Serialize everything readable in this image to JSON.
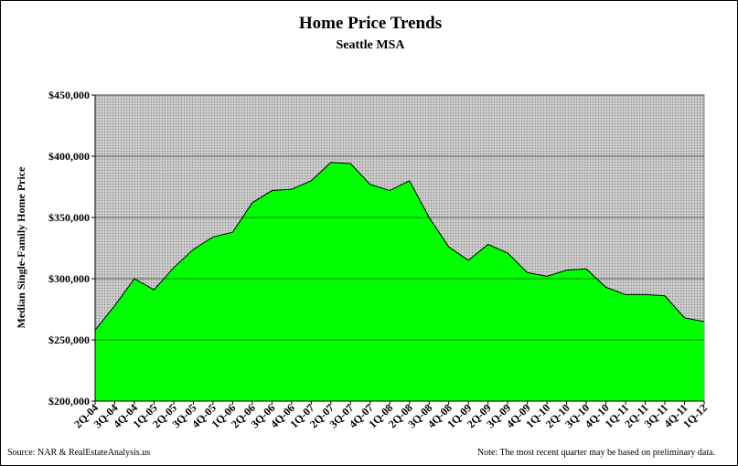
{
  "chart_data": {
    "type": "area",
    "title": "Home Price Trends",
    "subtitle": "Seattle MSA",
    "y_label": "Median Single-Family Home Price",
    "source": "Source: NAR & RealEstateAnalysis.us",
    "note": "Note: The most recent quarter may be based on preliminary data.",
    "categories": [
      "2Q-04",
      "3Q-04",
      "4Q-04",
      "1Q-05",
      "2Q-05",
      "3Q-05",
      "4Q-05",
      "1Q-06",
      "2Q-06",
      "3Q-06",
      "4Q-06",
      "1Q-07",
      "2Q-07",
      "3Q-07",
      "4Q-07",
      "1Q-08",
      "2Q-08",
      "3Q-08",
      "4Q-08",
      "1Q-09",
      "2Q-09",
      "3Q-09",
      "4Q-09",
      "1Q-10",
      "2Q-10",
      "3Q-10",
      "4Q-10",
      "1Q-11",
      "2Q-11",
      "3Q-11",
      "4Q-11",
      "1Q-12"
    ],
    "values": [
      258000,
      278000,
      300000,
      291000,
      309000,
      324000,
      334000,
      338000,
      362000,
      372000,
      373000,
      380000,
      395000,
      394000,
      377000,
      372000,
      380000,
      350000,
      326000,
      315000,
      328000,
      321000,
      305000,
      302000,
      307000,
      308000,
      293000,
      287000,
      287000,
      286000,
      268000,
      265000
    ],
    "color": "#00ff00",
    "ylim": [
      200000,
      450000
    ],
    "yticks": [
      {
        "value": 200000,
        "label": "$200,000"
      },
      {
        "value": 250000,
        "label": "$250,000"
      },
      {
        "value": 300000,
        "label": "$300,000"
      },
      {
        "value": 350000,
        "label": "$350,000"
      },
      {
        "value": 400000,
        "label": "$400,000"
      },
      {
        "value": 450000,
        "label": "$450,000"
      }
    ],
    "grid": true
  }
}
